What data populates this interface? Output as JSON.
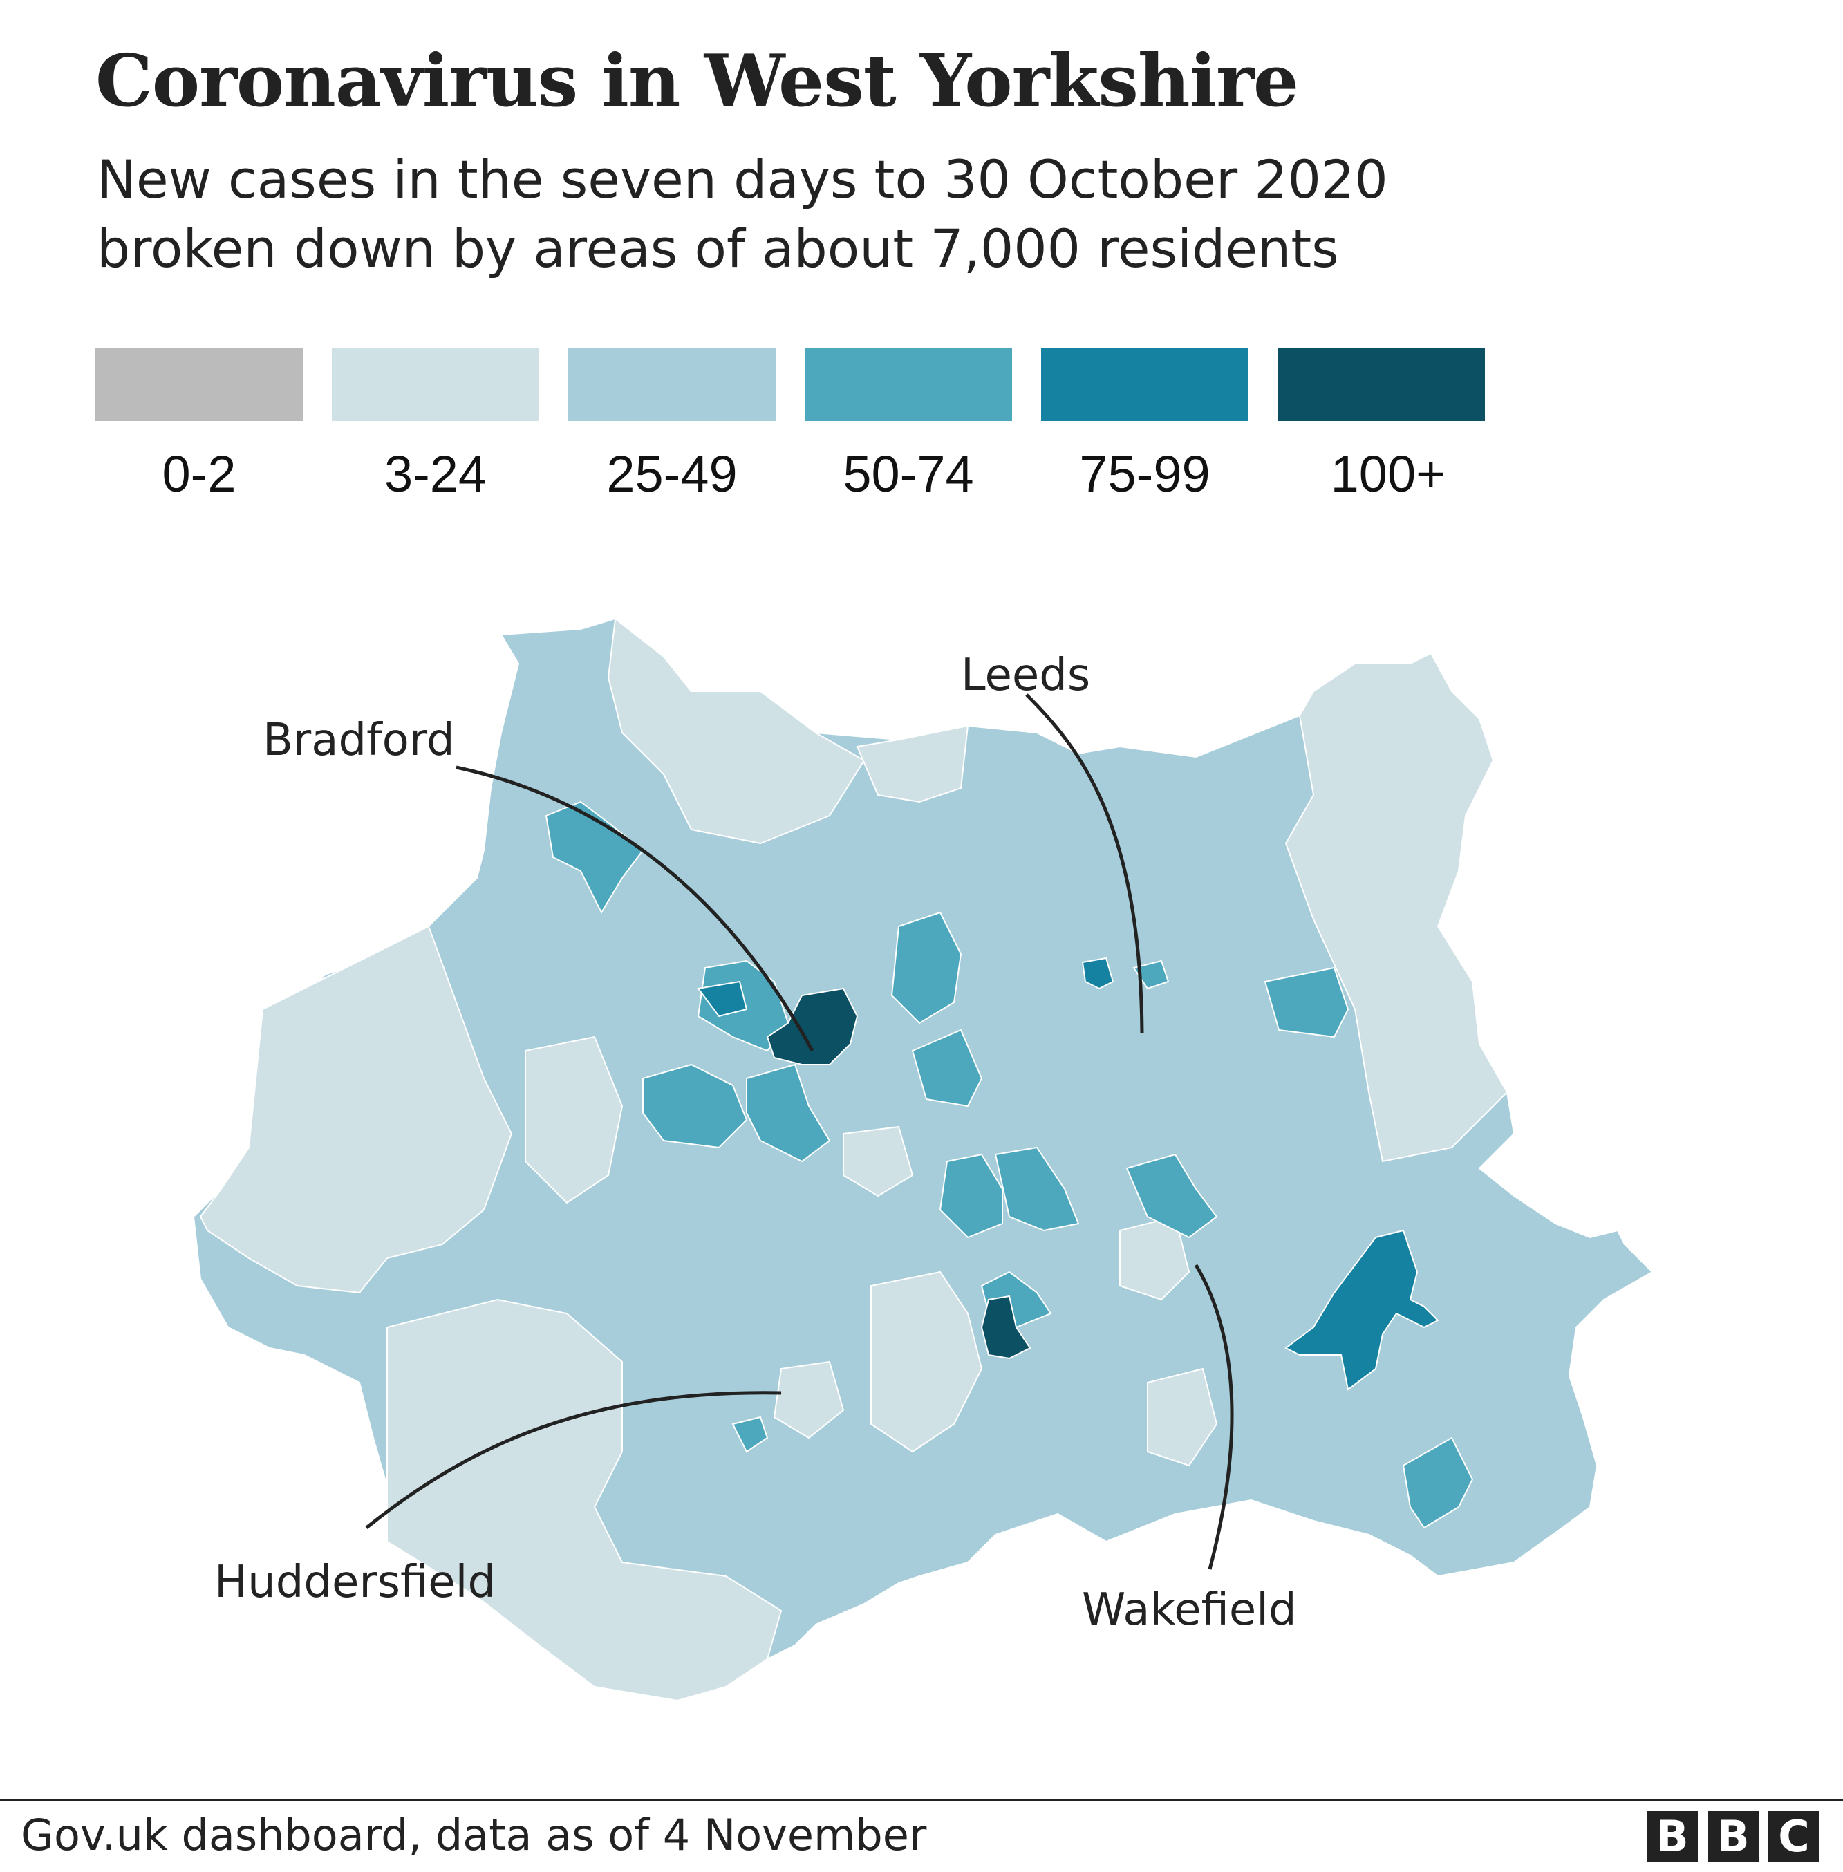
{
  "title": "Coronavirus in West Yorkshire",
  "subtitle_line1": "New cases in the seven days to 30 October 2020",
  "subtitle_line2": "broken down by areas of about 7,000 residents",
  "legend": [
    {
      "label": "0-2",
      "color": "#bbbbbb"
    },
    {
      "label": "3-24",
      "color": "#d0e1e6"
    },
    {
      "label": "25-49",
      "color": "#a6cdd9"
    },
    {
      "label": "50-74",
      "color": "#4da8be"
    },
    {
      "label": "75-99",
      "color": "#1682a2"
    },
    {
      "label": "100+",
      "color": "#0b5063"
    }
  ],
  "cities": {
    "bradford": "Bradford",
    "leeds": "Leeds",
    "huddersfield": "Huddersfield",
    "wakefield": "Wakefield"
  },
  "source": "Gov.uk dashboard, data as of 4 November",
  "logo": {
    "letters": [
      "B",
      "B",
      "C"
    ]
  }
}
